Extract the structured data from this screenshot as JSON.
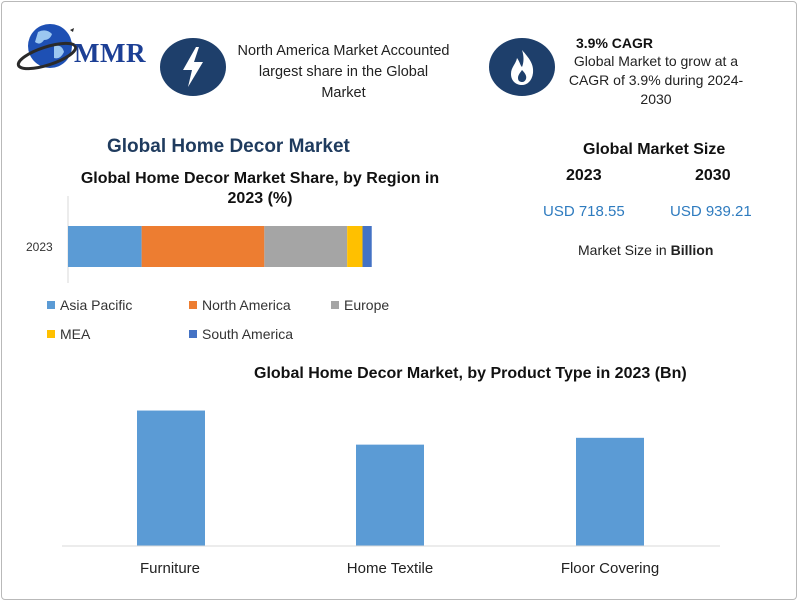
{
  "brand": {
    "logo_text": "MMR"
  },
  "callouts": {
    "north_america": "North America Market Accounted largest share in the Global Market",
    "cagr_title": "3.9% CAGR",
    "cagr_text": "Global Market to grow at a CAGR of 3.9% during 2024-2030"
  },
  "market_size": {
    "title": "Global Market Size",
    "year_a": "2023",
    "year_b": "2030",
    "value_a": "USD 718.55",
    "value_b": "USD 939.21",
    "note_prefix": "Market Size in ",
    "note_unit": "Billion"
  },
  "icons": {
    "bolt": "lightning-bolt-icon",
    "flame": "flame-icon",
    "globe": "globe-icon"
  },
  "colors": {
    "asia_pacific": "#5b9bd5",
    "north_america": "#ed7d31",
    "europe": "#a5a5a5",
    "mea": "#ffc000",
    "south_america": "#4472c4",
    "product_bar": "#5b9bd5",
    "icon_bg": "#1e3f6b"
  },
  "chart_data": [
    {
      "type": "bar",
      "orientation": "horizontal",
      "stacked": true,
      "pre_title": "Global Home Decor Market",
      "title": "Global Home Decor Market Share, by Region in 2023 (%)",
      "categories": [
        "2023"
      ],
      "series": [
        {
          "name": "Asia Pacific",
          "values": [
            24
          ]
        },
        {
          "name": "North America",
          "values": [
            40
          ]
        },
        {
          "name": "Europe",
          "values": [
            27
          ]
        },
        {
          "name": "MEA",
          "values": [
            5
          ]
        },
        {
          "name": "South America",
          "values": [
            3
          ]
        }
      ],
      "xlim": [
        0,
        103
      ],
      "legend": "bottom",
      "grid": false
    },
    {
      "type": "bar",
      "title": "Global Home Decor Market, by Product Type in 2023 (Bn)",
      "categories": [
        "Furniture",
        "Home Textile",
        "Floor Covering"
      ],
      "values": [
        298,
        223,
        238
      ],
      "ylim": [
        0,
        330
      ],
      "legend": "none",
      "grid": false
    }
  ]
}
